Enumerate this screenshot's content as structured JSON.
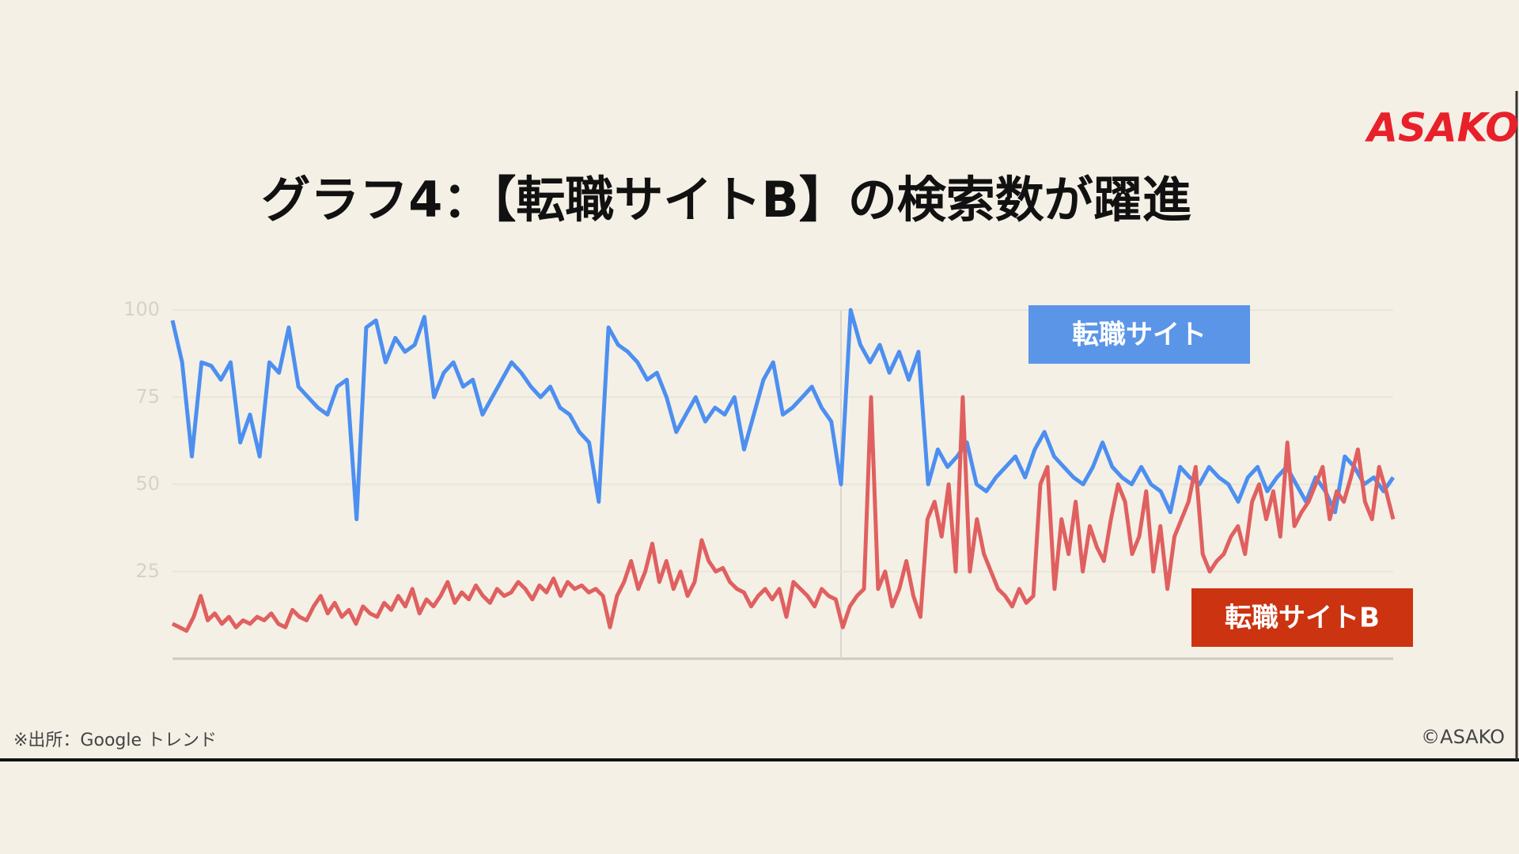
{
  "logo": "ASAKO",
  "chart_data": {
    "type": "line",
    "title": "グラフ4：【転職サイトB】の検索数が躍進",
    "ylim": [
      0,
      100
    ],
    "yticks": [
      25,
      50,
      75,
      100
    ],
    "grid": true,
    "series": [
      {
        "name": "転職サイト",
        "color": "#4d8ff0",
        "label_color": "#5b95e8",
        "values": [
          97,
          85,
          58,
          85,
          84,
          80,
          85,
          62,
          70,
          58,
          85,
          82,
          95,
          78,
          75,
          72,
          70,
          78,
          80,
          40,
          95,
          97,
          85,
          92,
          88,
          90,
          98,
          75,
          82,
          85,
          78,
          80,
          70,
          75,
          80,
          85,
          82,
          78,
          75,
          78,
          72,
          70,
          65,
          62,
          45,
          95,
          90,
          88,
          85,
          80,
          82,
          75,
          65,
          70,
          75,
          68,
          72,
          70,
          75,
          60,
          70,
          80,
          85,
          70,
          72,
          75,
          78,
          72,
          68,
          50,
          100,
          90,
          85,
          90,
          82,
          88,
          80,
          88,
          50,
          60,
          55,
          58,
          62,
          50,
          48,
          52,
          55,
          58,
          52,
          60,
          65,
          58,
          55,
          52,
          50,
          55,
          62,
          55,
          52,
          50,
          55,
          50,
          48,
          42,
          55,
          52,
          50,
          55,
          52,
          50,
          45,
          52,
          55,
          48,
          52,
          55,
          50,
          45,
          52,
          48,
          42,
          58,
          55,
          50,
          52,
          48,
          52
        ]
      },
      {
        "name": "転職サイトB",
        "color": "#e06060",
        "label_color": "#cc3311",
        "values": [
          10,
          9,
          8,
          12,
          18,
          11,
          13,
          10,
          12,
          9,
          11,
          10,
          12,
          11,
          13,
          10,
          9,
          14,
          12,
          11,
          15,
          18,
          13,
          16,
          12,
          14,
          10,
          15,
          13,
          12,
          16,
          14,
          18,
          15,
          20,
          13,
          17,
          15,
          18,
          22,
          16,
          19,
          17,
          21,
          18,
          16,
          20,
          18,
          19,
          22,
          20,
          17,
          21,
          19,
          23,
          18,
          22,
          20,
          21,
          19,
          20,
          18,
          9,
          18,
          22,
          28,
          20,
          25,
          33,
          22,
          28,
          20,
          25,
          18,
          22,
          34,
          28,
          25,
          26,
          22,
          20,
          19,
          15,
          18,
          20,
          17,
          20,
          12,
          22,
          20,
          18,
          15,
          20,
          18,
          17,
          9,
          15,
          18,
          20,
          75,
          20,
          25,
          15,
          20,
          28,
          18,
          12,
          40,
          45,
          35,
          50,
          25,
          75,
          25,
          40,
          30,
          25,
          20,
          18,
          15,
          20,
          16,
          18,
          50,
          55,
          20,
          40,
          30,
          45,
          25,
          38,
          32,
          28,
          40,
          50,
          45,
          30,
          35,
          48,
          25,
          38,
          20,
          35,
          40,
          45,
          55,
          30,
          25,
          28,
          30,
          35,
          38,
          30,
          45,
          50,
          40,
          48,
          35,
          62,
          38,
          42,
          45,
          50,
          55,
          40,
          48,
          45,
          52,
          60,
          45,
          40,
          55,
          48,
          40
        ]
      }
    ],
    "source": "※出所：Google トレンド",
    "copyright": "©ASAKO"
  }
}
